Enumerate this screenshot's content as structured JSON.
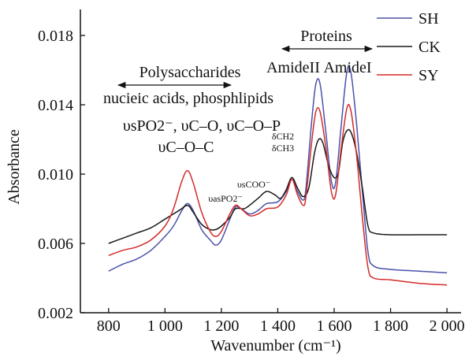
{
  "chart_data": {
    "type": "line",
    "xlabel": "Wavenumber (cm⁻¹)",
    "ylabel": "Absorbance",
    "xlim": [
      700,
      2050
    ],
    "ylim": [
      0.002,
      0.0195
    ],
    "xticks": [
      800,
      1000,
      1200,
      1400,
      1600,
      1800,
      2000
    ],
    "xtick_labels": [
      "800",
      "1 000",
      "1 200",
      "1 400",
      "1 600",
      "1 800",
      "2 000"
    ],
    "yticks": [
      0.002,
      0.006,
      0.01,
      0.014,
      0.018
    ],
    "ytick_labels": [
      "0.002",
      "0.006",
      "0.010",
      "0.014",
      "0.018"
    ],
    "grid": false,
    "legend_position": "top-right",
    "series": [
      {
        "name": "SH",
        "color": "#4a52a8",
        "points": [
          [
            800,
            0.0044
          ],
          [
            850,
            0.0048
          ],
          [
            900,
            0.0051
          ],
          [
            950,
            0.0056
          ],
          [
            1000,
            0.0064
          ],
          [
            1030,
            0.007
          ],
          [
            1060,
            0.0079
          ],
          [
            1080,
            0.0083
          ],
          [
            1100,
            0.0079
          ],
          [
            1130,
            0.0068
          ],
          [
            1160,
            0.0062
          ],
          [
            1180,
            0.0059
          ],
          [
            1200,
            0.0062
          ],
          [
            1230,
            0.0074
          ],
          [
            1250,
            0.0081
          ],
          [
            1270,
            0.008
          ],
          [
            1300,
            0.0077
          ],
          [
            1330,
            0.0079
          ],
          [
            1360,
            0.0083
          ],
          [
            1400,
            0.0084
          ],
          [
            1430,
            0.009
          ],
          [
            1450,
            0.0097
          ],
          [
            1470,
            0.009
          ],
          [
            1490,
            0.0085
          ],
          [
            1500,
            0.0092
          ],
          [
            1520,
            0.013
          ],
          [
            1535,
            0.0152
          ],
          [
            1550,
            0.0152
          ],
          [
            1570,
            0.0125
          ],
          [
            1590,
            0.0096
          ],
          [
            1605,
            0.0095
          ],
          [
            1625,
            0.0128
          ],
          [
            1645,
            0.0159
          ],
          [
            1660,
            0.0158
          ],
          [
            1680,
            0.0128
          ],
          [
            1700,
            0.009
          ],
          [
            1720,
            0.0055
          ],
          [
            1740,
            0.0047
          ],
          [
            1800,
            0.0045
          ],
          [
            1900,
            0.0044
          ],
          [
            2000,
            0.0043
          ]
        ]
      },
      {
        "name": "CK",
        "color": "#1a1a1a",
        "points": [
          [
            800,
            0.006
          ],
          [
            850,
            0.0063
          ],
          [
            900,
            0.0066
          ],
          [
            950,
            0.0069
          ],
          [
            1000,
            0.0074
          ],
          [
            1050,
            0.0079
          ],
          [
            1080,
            0.0082
          ],
          [
            1100,
            0.0078
          ],
          [
            1130,
            0.0071
          ],
          [
            1160,
            0.0068
          ],
          [
            1180,
            0.0068
          ],
          [
            1200,
            0.007
          ],
          [
            1230,
            0.0075
          ],
          [
            1250,
            0.008
          ],
          [
            1280,
            0.008
          ],
          [
            1300,
            0.0082
          ],
          [
            1330,
            0.0086
          ],
          [
            1360,
            0.009
          ],
          [
            1390,
            0.0088
          ],
          [
            1410,
            0.0086
          ],
          [
            1430,
            0.0091
          ],
          [
            1450,
            0.0098
          ],
          [
            1470,
            0.0092
          ],
          [
            1490,
            0.0087
          ],
          [
            1510,
            0.0092
          ],
          [
            1530,
            0.0112
          ],
          [
            1545,
            0.012
          ],
          [
            1560,
            0.0118
          ],
          [
            1580,
            0.0105
          ],
          [
            1600,
            0.0098
          ],
          [
            1615,
            0.0101
          ],
          [
            1630,
            0.0118
          ],
          [
            1645,
            0.0125
          ],
          [
            1660,
            0.0124
          ],
          [
            1680,
            0.0112
          ],
          [
            1700,
            0.0092
          ],
          [
            1720,
            0.007
          ],
          [
            1740,
            0.0066
          ],
          [
            1800,
            0.0065
          ],
          [
            1900,
            0.0065
          ],
          [
            2000,
            0.0065
          ]
        ]
      },
      {
        "name": "SY",
        "color": "#d42a2a",
        "points": [
          [
            800,
            0.0053
          ],
          [
            850,
            0.0056
          ],
          [
            900,
            0.0058
          ],
          [
            950,
            0.0062
          ],
          [
            1000,
            0.007
          ],
          [
            1030,
            0.008
          ],
          [
            1060,
            0.0096
          ],
          [
            1080,
            0.0102
          ],
          [
            1100,
            0.0095
          ],
          [
            1130,
            0.0078
          ],
          [
            1160,
            0.0067
          ],
          [
            1180,
            0.0064
          ],
          [
            1200,
            0.0067
          ],
          [
            1230,
            0.0077
          ],
          [
            1250,
            0.0082
          ],
          [
            1270,
            0.008
          ],
          [
            1300,
            0.0076
          ],
          [
            1330,
            0.0077
          ],
          [
            1360,
            0.008
          ],
          [
            1400,
            0.0081
          ],
          [
            1430,
            0.0088
          ],
          [
            1450,
            0.0097
          ],
          [
            1470,
            0.0088
          ],
          [
            1490,
            0.0082
          ],
          [
            1500,
            0.0087
          ],
          [
            1520,
            0.0118
          ],
          [
            1535,
            0.0136
          ],
          [
            1550,
            0.0136
          ],
          [
            1570,
            0.0116
          ],
          [
            1590,
            0.009
          ],
          [
            1605,
            0.0088
          ],
          [
            1625,
            0.0115
          ],
          [
            1645,
            0.0138
          ],
          [
            1660,
            0.0136
          ],
          [
            1680,
            0.011
          ],
          [
            1700,
            0.0075
          ],
          [
            1720,
            0.0046
          ],
          [
            1740,
            0.004
          ],
          [
            1800,
            0.0039
          ],
          [
            1900,
            0.0037
          ],
          [
            2000,
            0.0036
          ]
        ]
      }
    ],
    "annotations": {
      "proteins": "Proteins",
      "amide2": "AmideII",
      "amide1": "AmideI",
      "polysaccharides": "Polysaccharides",
      "nucleic": "nucieic acids, phosphlipids",
      "vibr_line1": "υsPO2⁻, υC–O, υC–O–P",
      "vibr_line2": "υC–O–C",
      "v_as_po2": "υasPO2⁻",
      "v_s_coo": "υsCOO⁻",
      "dch2": "δCH2",
      "dch3": "δCH3"
    }
  }
}
